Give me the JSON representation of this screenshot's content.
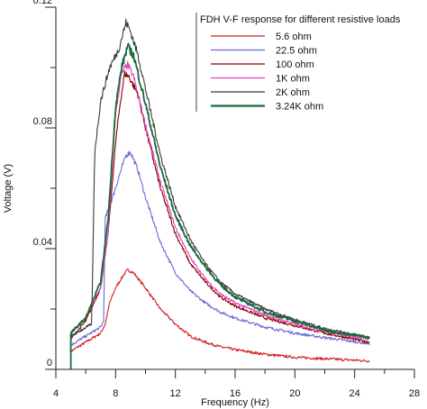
{
  "chart_data": {
    "type": "line",
    "title": "",
    "xlabel": "Frequency (Hz)",
    "ylabel": "Voltage (V)",
    "xlim": [
      4,
      28
    ],
    "ylim": [
      0,
      0.12
    ],
    "x_ticks": [
      "4",
      "8",
      "12",
      "16",
      "20",
      "24",
      "28"
    ],
    "y_ticks": [
      "0",
      "0.04",
      "0.08",
      "0.12"
    ],
    "grid": false,
    "legend": {
      "title": "FDH V-F response for different resistive loads",
      "placement": "top-right"
    },
    "series": [
      {
        "name": "5.6 ohm",
        "color": "#d42020",
        "points": [
          [
            5,
            0.006
          ],
          [
            6,
            0.009
          ],
          [
            7,
            0.012
          ],
          [
            7.3,
            0.015
          ],
          [
            7.6,
            0.022
          ],
          [
            8,
            0.027
          ],
          [
            8.5,
            0.031
          ],
          [
            8.8,
            0.033
          ],
          [
            9.2,
            0.032
          ],
          [
            10,
            0.027
          ],
          [
            11,
            0.02
          ],
          [
            12,
            0.015
          ],
          [
            13,
            0.011
          ],
          [
            14,
            0.009
          ],
          [
            15,
            0.0075
          ],
          [
            16,
            0.0065
          ],
          [
            18,
            0.005
          ],
          [
            20,
            0.004
          ],
          [
            22,
            0.0035
          ],
          [
            25,
            0.0028
          ]
        ]
      },
      {
        "name": "22.5 ohm",
        "color": "#6a6ad8",
        "points": [
          [
            5,
            0.008
          ],
          [
            6,
            0.011
          ],
          [
            7,
            0.014
          ],
          [
            7.2,
            0.016
          ],
          [
            7.3,
            0.05
          ],
          [
            7.8,
            0.057
          ],
          [
            8.3,
            0.065
          ],
          [
            8.7,
            0.071
          ],
          [
            9,
            0.072
          ],
          [
            9.5,
            0.066
          ],
          [
            10,
            0.057
          ],
          [
            11,
            0.042
          ],
          [
            12,
            0.032
          ],
          [
            13,
            0.026
          ],
          [
            14,
            0.022
          ],
          [
            15,
            0.019
          ],
          [
            16,
            0.017
          ],
          [
            18,
            0.014
          ],
          [
            20,
            0.012
          ],
          [
            22,
            0.0105
          ],
          [
            25,
            0.0085
          ]
        ]
      },
      {
        "name": "100 ohm",
        "color": "#8b0000",
        "points": [
          [
            5,
            0.01
          ],
          [
            6,
            0.016
          ],
          [
            7,
            0.027
          ],
          [
            7.5,
            0.045
          ],
          [
            8,
            0.075
          ],
          [
            8.3,
            0.088
          ],
          [
            8.6,
            0.098
          ],
          [
            8.9,
            0.097
          ],
          [
            9.5,
            0.091
          ],
          [
            10,
            0.08
          ],
          [
            11,
            0.06
          ],
          [
            12,
            0.045
          ],
          [
            13,
            0.035
          ],
          [
            14,
            0.029
          ],
          [
            15,
            0.024
          ],
          [
            16,
            0.021
          ],
          [
            18,
            0.017
          ],
          [
            20,
            0.0145
          ],
          [
            22,
            0.012
          ],
          [
            25,
            0.009
          ]
        ]
      },
      {
        "name": "1K ohm",
        "color": "#e040c0",
        "points": [
          [
            5,
            0.012
          ],
          [
            6,
            0.017
          ],
          [
            7,
            0.027
          ],
          [
            7.5,
            0.045
          ],
          [
            8,
            0.085
          ],
          [
            8.4,
            0.098
          ],
          [
            8.8,
            0.101
          ],
          [
            9.2,
            0.097
          ],
          [
            10,
            0.081
          ],
          [
            11,
            0.062
          ],
          [
            12,
            0.047
          ],
          [
            13,
            0.037
          ],
          [
            14,
            0.03
          ],
          [
            15,
            0.025
          ],
          [
            16,
            0.022
          ],
          [
            18,
            0.018
          ],
          [
            20,
            0.015
          ],
          [
            22,
            0.0125
          ],
          [
            25,
            0.01
          ]
        ]
      },
      {
        "name": "2K ohm",
        "color": "#3a3a3a",
        "points": [
          [
            5,
            0.011
          ],
          [
            6.4,
            0.015
          ],
          [
            6.6,
            0.072
          ],
          [
            7,
            0.089
          ],
          [
            7.6,
            0.1
          ],
          [
            8.2,
            0.106
          ],
          [
            8.7,
            0.115
          ],
          [
            9,
            0.112
          ],
          [
            9.5,
            0.104
          ],
          [
            10,
            0.093
          ],
          [
            11,
            0.071
          ],
          [
            12,
            0.054
          ],
          [
            13,
            0.043
          ],
          [
            14,
            0.035
          ],
          [
            15,
            0.029
          ],
          [
            16,
            0.025
          ],
          [
            18,
            0.02
          ],
          [
            20,
            0.0165
          ],
          [
            22,
            0.0135
          ],
          [
            25,
            0.0105
          ]
        ]
      },
      {
        "name": "3.24K ohm",
        "color": "#1a6b3a",
        "points": [
          [
            5,
            0.012
          ],
          [
            6,
            0.017
          ],
          [
            7,
            0.029
          ],
          [
            7.5,
            0.05
          ],
          [
            8,
            0.087
          ],
          [
            8.4,
            0.1
          ],
          [
            8.8,
            0.107
          ],
          [
            9.2,
            0.104
          ],
          [
            10,
            0.088
          ],
          [
            11,
            0.067
          ],
          [
            12,
            0.051
          ],
          [
            13,
            0.041
          ],
          [
            14,
            0.034
          ],
          [
            15,
            0.028
          ],
          [
            16,
            0.024
          ],
          [
            18,
            0.019
          ],
          [
            20,
            0.016
          ],
          [
            22,
            0.013
          ],
          [
            25,
            0.0105
          ]
        ]
      }
    ]
  }
}
